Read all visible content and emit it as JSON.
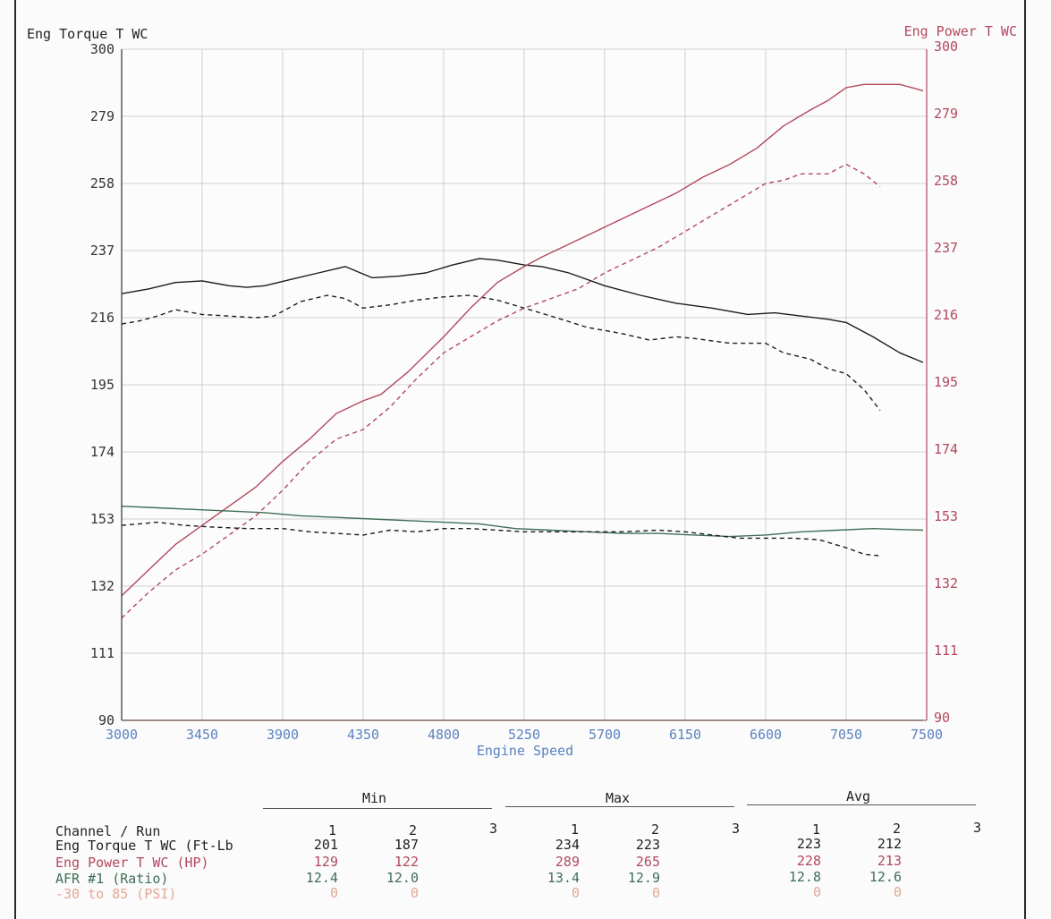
{
  "chart_data": {
    "type": "line",
    "title": "",
    "xlabel": "Engine Speed",
    "ylabel_left": "Eng Torque T WC",
    "ylabel_right": "Eng Power T WC",
    "xlim": [
      3000,
      7500
    ],
    "ylim_left": [
      90,
      300
    ],
    "ylim_right": [
      90,
      300
    ],
    "x_ticks": [
      3000,
      3450,
      3900,
      4350,
      4800,
      5250,
      5700,
      6150,
      6600,
      7050,
      7500
    ],
    "y_ticks": [
      90,
      111,
      132,
      153,
      174,
      195,
      216,
      237,
      258,
      279,
      300
    ],
    "grid": true,
    "colors": {
      "torque": "#1c1c1c",
      "power": "#b2485e",
      "afr": "#3f6e55",
      "psi": "#d98b73",
      "x_tick": "#5b82c0",
      "right_axis": "#b2485e"
    },
    "series": [
      {
        "name": "Eng Torque T WC (Ft-Lb)",
        "run": 1,
        "axis": "left",
        "color": "#1c1c1c",
        "dash": false,
        "x": [
          3000,
          3150,
          3300,
          3450,
          3600,
          3700,
          3800,
          3950,
          4100,
          4250,
          4400,
          4550,
          4700,
          4850,
          5000,
          5100,
          5250,
          5350,
          5500,
          5700,
          5900,
          6100,
          6300,
          6500,
          6650,
          6800,
          6950,
          7050,
          7200,
          7350,
          7480
        ],
        "y": [
          223.5,
          225,
          227,
          227.5,
          226,
          225.5,
          226,
          228,
          230,
          232,
          228.5,
          229,
          230,
          232.5,
          234.5,
          234,
          232.5,
          232,
          230,
          226,
          223,
          220.5,
          219,
          217,
          217.5,
          216.5,
          215.5,
          214.5,
          210,
          205,
          202
        ]
      },
      {
        "name": "Eng Torque T WC (Ft-Lb)",
        "run": 2,
        "axis": "left",
        "color": "#1c1c1c",
        "dash": true,
        "x": [
          3000,
          3100,
          3200,
          3300,
          3450,
          3600,
          3750,
          3850,
          4000,
          4150,
          4250,
          4350,
          4500,
          4650,
          4800,
          4950,
          5100,
          5250,
          5400,
          5600,
          5800,
          5950,
          6100,
          6200,
          6400,
          6600,
          6700,
          6850,
          6950,
          7050,
          7150,
          7240
        ],
        "y": [
          214,
          215,
          216.5,
          218.5,
          217,
          216.5,
          216,
          216.5,
          221,
          223,
          222,
          219,
          220,
          221.5,
          222.5,
          223,
          221.5,
          219,
          216.5,
          213,
          211,
          209,
          210,
          209.5,
          208,
          208,
          205,
          203,
          200,
          198.5,
          193.5,
          187
        ]
      },
      {
        "name": "Eng Power T WC (HP)",
        "run": 1,
        "axis": "right",
        "color": "#b2485e",
        "dash": false,
        "x": [
          3000,
          3150,
          3300,
          3450,
          3600,
          3750,
          3900,
          4050,
          4200,
          4350,
          4450,
          4600,
          4800,
          4950,
          5100,
          5250,
          5350,
          5500,
          5650,
          5800,
          5950,
          6100,
          6250,
          6400,
          6550,
          6700,
          6850,
          6950,
          7050,
          7150,
          7250,
          7350,
          7480
        ],
        "y": [
          129,
          137,
          145,
          151,
          157,
          163,
          171,
          178,
          186,
          190,
          192,
          199,
          210,
          219,
          227,
          232,
          235,
          239,
          243,
          247,
          251,
          255,
          260,
          264,
          269,
          276,
          281,
          284,
          288,
          289,
          289,
          289,
          287
        ]
      },
      {
        "name": "Eng Power T WC (HP)",
        "run": 2,
        "axis": "right",
        "color": "#b2485e",
        "dash": true,
        "x": [
          3000,
          3150,
          3300,
          3450,
          3600,
          3750,
          3900,
          4050,
          4200,
          4350,
          4500,
          4650,
          4800,
          4950,
          5100,
          5250,
          5400,
          5550,
          5700,
          5850,
          6000,
          6150,
          6300,
          6450,
          6600,
          6700,
          6800,
          6950,
          7050,
          7150,
          7240
        ],
        "y": [
          122,
          130,
          137,
          142,
          148,
          154,
          162,
          171,
          178,
          181,
          188,
          197,
          205,
          210,
          215,
          219,
          222,
          225,
          230,
          234,
          238,
          243,
          248,
          253,
          258,
          259,
          261,
          261,
          264,
          261,
          257
        ]
      },
      {
        "name": "AFR #1 (Ratio)",
        "run": 1,
        "axis": "left",
        "color": "#3f6e55",
        "dash": false,
        "x": [
          3000,
          3200,
          3400,
          3600,
          3800,
          4000,
          4200,
          4400,
          4600,
          4800,
          5000,
          5200,
          5400,
          5600,
          5800,
          6000,
          6200,
          6400,
          6600,
          6800,
          7000,
          7200,
          7480
        ],
        "y": [
          157,
          156.5,
          156,
          155.5,
          155,
          154,
          153.5,
          153,
          152.5,
          152,
          151.5,
          150,
          149.5,
          149,
          148.5,
          148.5,
          148,
          147.5,
          148,
          149,
          149.5,
          150,
          149.5
        ]
      },
      {
        "name": "AFR #1 (Ratio)",
        "run": 2,
        "axis": "left",
        "color": "#1c1c1c",
        "dash": true,
        "x": [
          3000,
          3100,
          3200,
          3350,
          3500,
          3700,
          3900,
          4050,
          4200,
          4350,
          4500,
          4650,
          4800,
          4950,
          5100,
          5250,
          5400,
          5600,
          5800,
          6000,
          6150,
          6300,
          6450,
          6600,
          6750,
          6900,
          7050,
          7150,
          7240
        ],
        "y": [
          151,
          151.5,
          152,
          151,
          150.5,
          150,
          150,
          149,
          148.5,
          148,
          149.5,
          149,
          150,
          150,
          149.5,
          149,
          149,
          149,
          149,
          149.5,
          149,
          148,
          147,
          147,
          147,
          146.5,
          144,
          142,
          141.5
        ]
      },
      {
        "name": "-30 to 85 (PSI)",
        "run": 1,
        "axis": "left",
        "color": "#d98b73",
        "dash": false,
        "x": [
          3000,
          7480
        ],
        "y": [
          90,
          90
        ]
      }
    ]
  },
  "stats": {
    "groups": [
      "Min",
      "Max",
      "Avg"
    ],
    "header_label": "Channel / Run",
    "runs": [
      "1",
      "2",
      "3"
    ],
    "rows": [
      {
        "label": "Eng Torque T WC (Ft-Lb",
        "min": [
          "201",
          "187"
        ],
        "max": [
          "234",
          "223"
        ],
        "avg": [
          "223",
          "212"
        ]
      },
      {
        "label": "Eng Power T WC (HP)",
        "min": [
          "129",
          "122"
        ],
        "max": [
          "289",
          "265"
        ],
        "avg": [
          "228",
          "213"
        ]
      },
      {
        "label": "AFR #1 (Ratio)",
        "min": [
          "12.4",
          "12.0"
        ],
        "max": [
          "13.4",
          "12.9"
        ],
        "avg": [
          "12.8",
          "12.6"
        ]
      },
      {
        "label": "-30 to 85 (PSI)",
        "min": [
          "0",
          "0"
        ],
        "max": [
          "0",
          "0"
        ],
        "avg": [
          "0",
          "0"
        ]
      }
    ]
  }
}
